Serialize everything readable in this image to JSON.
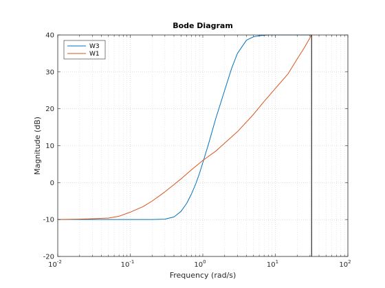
{
  "chart_data": {
    "type": "line",
    "title": "Bode Diagram",
    "xlabel": "Frequency  (rad/s)",
    "ylabel": "Magnitude (dB)",
    "xscale": "log",
    "xlim": [
      0.01,
      100
    ],
    "ylim": [
      -20,
      40
    ],
    "xticks": [
      0.01,
      0.1,
      1,
      10,
      100
    ],
    "xtick_labels": [
      {
        "base": "10",
        "exp": "-2"
      },
      {
        "base": "10",
        "exp": "-1"
      },
      {
        "base": "10",
        "exp": "0"
      },
      {
        "base": "10",
        "exp": "1"
      },
      {
        "base": "10",
        "exp": "2"
      }
    ],
    "yticks": [
      -20,
      -10,
      0,
      10,
      20,
      30,
      40
    ],
    "ytick_labels": [
      "-20",
      "-10",
      "0",
      "10",
      "20",
      "30",
      "40"
    ],
    "grid": true,
    "minor_grid": true,
    "legend_position": "top-left",
    "vertical_line_x": 31.6,
    "series": [
      {
        "name": "W3",
        "color": "#0072bd",
        "x": [
          0.01,
          0.03,
          0.1,
          0.2,
          0.3,
          0.4,
          0.5,
          0.6,
          0.7,
          0.8,
          0.9,
          1.0,
          1.2,
          1.5,
          2.0,
          2.5,
          3.0,
          4.0,
          5.0,
          6.0,
          8.0,
          10,
          15,
          20,
          31.6
        ],
        "values": [
          -10,
          -10,
          -10,
          -10,
          -9.9,
          -9.3,
          -7.8,
          -5.6,
          -3.0,
          -0.3,
          2.5,
          5.4,
          10.5,
          17.2,
          25.0,
          31.0,
          35.0,
          38.6,
          39.5,
          39.8,
          40,
          40,
          40,
          40,
          40
        ]
      },
      {
        "name": "W1",
        "color": "#d95319",
        "x": [
          0.01,
          0.02,
          0.05,
          0.07,
          0.1,
          0.15,
          0.2,
          0.3,
          0.5,
          0.7,
          1.0,
          1.5,
          2.0,
          3.0,
          5.0,
          7.0,
          10,
          15,
          20,
          25,
          31.6
        ],
        "values": [
          -10,
          -9.9,
          -9.6,
          -9.1,
          -8.0,
          -6.5,
          -5.0,
          -2.5,
          1.0,
          3.5,
          6.0,
          8.5,
          10.7,
          13.8,
          18.5,
          22.0,
          25.5,
          29.5,
          33.5,
          36.5,
          40
        ]
      }
    ]
  }
}
